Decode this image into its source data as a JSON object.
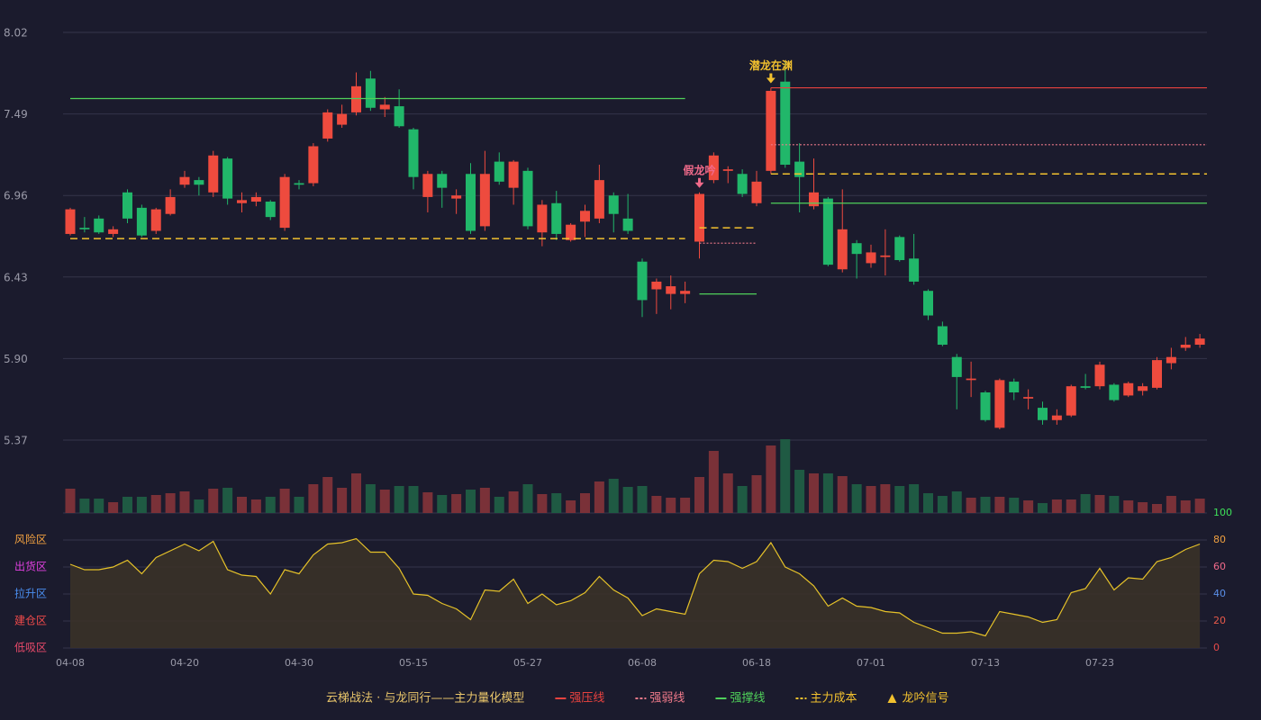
{
  "chart_data": {
    "type": "candlestick",
    "legend_title": "云梯战法 · 与龙同行——主力量化模型",
    "categories": [
      "04-08",
      null,
      null,
      null,
      null,
      null,
      null,
      null,
      "04-20",
      null,
      null,
      null,
      null,
      null,
      null,
      null,
      "04-30",
      null,
      null,
      null,
      null,
      null,
      null,
      null,
      "05-15",
      null,
      null,
      null,
      null,
      null,
      null,
      null,
      "05-27",
      null,
      null,
      null,
      null,
      null,
      null,
      null,
      "06-08",
      null,
      null,
      null,
      null,
      null,
      null,
      null,
      "06-18",
      null,
      null,
      null,
      null,
      null,
      null,
      null,
      "07-01",
      null,
      null,
      null,
      null,
      null,
      null,
      null,
      "07-13",
      null,
      null,
      null,
      null,
      null,
      null,
      null,
      "07-23",
      null,
      null,
      null,
      null,
      null,
      null,
      null
    ],
    "open": [
      6.71,
      6.75,
      6.81,
      6.71,
      6.98,
      6.88,
      6.73,
      6.84,
      7.03,
      7.06,
      6.98,
      7.2,
      6.91,
      6.92,
      6.92,
      6.75,
      7.04,
      7.04,
      7.33,
      7.42,
      7.5,
      7.72,
      7.52,
      7.54,
      7.39,
      6.95,
      7.1,
      6.94,
      7.1,
      6.76,
      7.18,
      7.01,
      7.12,
      6.72,
      6.91,
      6.67,
      6.79,
      6.81,
      6.96,
      6.81,
      6.53,
      6.35,
      6.32,
      6.32,
      6.66,
      7.06,
      7.12,
      7.1,
      6.91,
      7.12,
      7.7,
      7.18,
      6.89,
      6.94,
      6.48,
      6.65,
      6.52,
      6.56,
      6.69,
      6.55,
      6.34,
      6.11,
      5.91,
      5.76,
      5.68,
      5.45,
      5.75,
      5.64,
      5.58,
      5.5,
      5.53,
      5.72,
      5.72,
      5.73,
      5.66,
      5.69,
      5.71,
      5.87,
      5.97,
      5.99
    ],
    "high": [
      6.88,
      6.82,
      6.83,
      6.76,
      7.0,
      6.9,
      6.88,
      7.0,
      7.12,
      7.08,
      7.25,
      7.21,
      6.98,
      6.98,
      6.93,
      7.1,
      7.06,
      7.3,
      7.52,
      7.55,
      7.76,
      7.77,
      7.6,
      7.65,
      7.4,
      7.12,
      7.12,
      7.0,
      7.17,
      7.25,
      7.24,
      7.19,
      7.14,
      6.93,
      6.99,
      6.78,
      6.9,
      7.16,
      6.98,
      6.97,
      6.55,
      6.42,
      6.44,
      6.4,
      6.98,
      7.24,
      7.15,
      7.13,
      7.12,
      7.66,
      7.83,
      7.3,
      7.2,
      6.95,
      7.0,
      6.67,
      6.64,
      6.74,
      6.7,
      6.71,
      6.35,
      6.14,
      5.93,
      5.88,
      5.69,
      5.77,
      5.77,
      5.7,
      5.62,
      5.57,
      5.73,
      5.8,
      5.88,
      5.74,
      5.75,
      5.74,
      5.91,
      5.97,
      6.04,
      6.06
    ],
    "low": [
      6.7,
      6.72,
      6.71,
      6.69,
      6.78,
      6.69,
      6.71,
      6.83,
      7.01,
      6.96,
      6.95,
      6.9,
      6.85,
      6.89,
      6.8,
      6.73,
      7.0,
      7.02,
      7.31,
      7.4,
      7.48,
      7.51,
      7.47,
      7.4,
      7.0,
      6.85,
      6.88,
      6.84,
      6.71,
      6.73,
      7.03,
      6.9,
      6.74,
      6.63,
      6.67,
      6.66,
      6.69,
      6.78,
      6.72,
      6.71,
      6.17,
      6.19,
      6.22,
      6.26,
      6.55,
      7.04,
      7.04,
      6.95,
      6.89,
      7.1,
      7.14,
      6.85,
      6.87,
      6.5,
      6.46,
      6.42,
      6.49,
      6.44,
      6.53,
      6.38,
      6.15,
      5.98,
      5.57,
      5.65,
      5.49,
      5.44,
      5.63,
      5.57,
      5.47,
      5.47,
      5.52,
      5.7,
      5.7,
      5.62,
      5.65,
      5.66,
      5.7,
      5.83,
      5.95,
      5.97
    ],
    "close": [
      6.87,
      6.74,
      6.72,
      6.74,
      6.81,
      6.7,
      6.87,
      6.95,
      7.08,
      7.03,
      7.22,
      6.94,
      6.93,
      6.95,
      6.82,
      7.08,
      7.03,
      7.28,
      7.5,
      7.49,
      7.67,
      7.53,
      7.55,
      7.41,
      7.08,
      7.1,
      7.01,
      6.96,
      6.73,
      7.1,
      7.05,
      7.18,
      6.76,
      6.9,
      6.71,
      6.77,
      6.86,
      7.06,
      6.84,
      6.73,
      6.28,
      6.4,
      6.37,
      6.34,
      6.97,
      7.22,
      7.13,
      6.97,
      7.05,
      7.64,
      7.16,
      7.08,
      6.98,
      6.51,
      6.74,
      6.58,
      6.59,
      6.57,
      6.54,
      6.4,
      6.18,
      5.99,
      5.78,
      5.77,
      5.5,
      5.76,
      5.68,
      5.65,
      5.5,
      5.53,
      5.72,
      5.71,
      5.86,
      5.63,
      5.74,
      5.72,
      5.89,
      5.91,
      5.99,
      6.03
    ],
    "volume": [
      27,
      16,
      16,
      12,
      18,
      18,
      20,
      22,
      24,
      15,
      27,
      28,
      18,
      15,
      18,
      27,
      18,
      32,
      40,
      28,
      44,
      32,
      26,
      30,
      30,
      23,
      20,
      21,
      26,
      28,
      18,
      24,
      32,
      21,
      22,
      14,
      22,
      35,
      38,
      29,
      30,
      19,
      17,
      17,
      40,
      69,
      44,
      30,
      42,
      75,
      82,
      48,
      44,
      44,
      41,
      32,
      30,
      32,
      30,
      32,
      22,
      19,
      24,
      17,
      18,
      18,
      17,
      14,
      11,
      15,
      15,
      21,
      20,
      19,
      14,
      12,
      10,
      19,
      14,
      16
    ],
    "up_color": "#ee4b3e",
    "down_color": "#21b76a",
    "volume_up_color": "#7a3138",
    "volume_down_color": "#1f5a43",
    "ylim": [
      5.37,
      8.02
    ],
    "yticks": [
      {
        "value": 8.02,
        "label": "8.02"
      },
      {
        "value": 7.49,
        "label": "7.49"
      },
      {
        "value": 6.96,
        "label": "6.96"
      },
      {
        "value": 6.43,
        "label": "6.43"
      },
      {
        "value": 5.9,
        "label": "5.90"
      },
      {
        "value": 5.37,
        "label": "5.37"
      }
    ],
    "overlays": [
      {
        "name": "强压线",
        "color": "#e8423f",
        "style": "solid",
        "segments": [
          {
            "from": 49,
            "to": 79,
            "value": 7.66
          }
        ]
      },
      {
        "name": "强弱线",
        "color": "#f07a8a",
        "style": "dotted",
        "segments": [
          {
            "from": 44,
            "to": 48,
            "value": 6.65
          },
          {
            "from": 49,
            "to": 79,
            "value": 7.29
          }
        ]
      },
      {
        "name": "强撑线",
        "color": "#4fd05a",
        "style": "solid",
        "segments": [
          {
            "from": 0,
            "to": 43,
            "value": 7.59
          },
          {
            "from": 44,
            "to": 48,
            "value": 6.32
          },
          {
            "from": 49,
            "to": 79,
            "value": 6.91
          }
        ]
      },
      {
        "name": "主力成本",
        "color": "#f2c12e",
        "style": "dashed",
        "segments": [
          {
            "from": 0,
            "to": 43,
            "value": 6.68
          },
          {
            "from": 44,
            "to": 48,
            "value": 6.75
          },
          {
            "from": 49,
            "to": 79,
            "value": 7.1
          }
        ]
      }
    ],
    "signal_name": "龙吟信号",
    "signal_color": "#f2c12e",
    "signals": [
      {
        "index": 44,
        "label": "假龙吟",
        "color": "#f06a8a"
      },
      {
        "index": 49,
        "label": "潜龙在渊",
        "color": "#f2c12e"
      }
    ],
    "indicator": {
      "values": [
        62,
        58,
        58,
        60,
        65,
        55,
        67,
        72,
        77,
        72,
        79,
        58,
        54,
        53,
        40,
        58,
        55,
        69,
        77,
        78,
        81,
        71,
        71,
        59,
        40,
        39,
        33,
        29,
        21,
        43,
        42,
        51,
        33,
        40,
        32,
        35,
        41,
        53,
        43,
        37,
        24,
        29,
        27,
        25,
        55,
        65,
        64,
        59,
        64,
        78,
        60,
        55,
        46,
        31,
        37,
        31,
        30,
        27,
        26,
        19,
        15,
        11,
        11,
        12,
        9,
        27,
        25,
        23,
        19,
        21,
        41,
        44,
        59,
        43,
        52,
        51,
        64,
        67,
        73,
        77
      ],
      "color": "#e6c229",
      "ylim": [
        0,
        100
      ],
      "yticks": [
        0,
        20,
        40,
        60,
        80,
        100
      ],
      "ytick_colors": [
        "#e84a4a",
        "#e85a4a",
        "#5a8ee8",
        "#f06a8a",
        "#f0a040",
        "#3ee05a"
      ],
      "zones": [
        {
          "value": 80,
          "label": "风险区",
          "color": "#f0a040"
        },
        {
          "value": 60,
          "label": "出货区",
          "color": "#e040e0"
        },
        {
          "value": 40,
          "label": "拉升区",
          "color": "#4a8ef0"
        },
        {
          "value": 20,
          "label": "建仓区",
          "color": "#f04a4a"
        },
        {
          "value": 0,
          "label": "低吸区",
          "color": "#e84a6a"
        }
      ]
    }
  }
}
